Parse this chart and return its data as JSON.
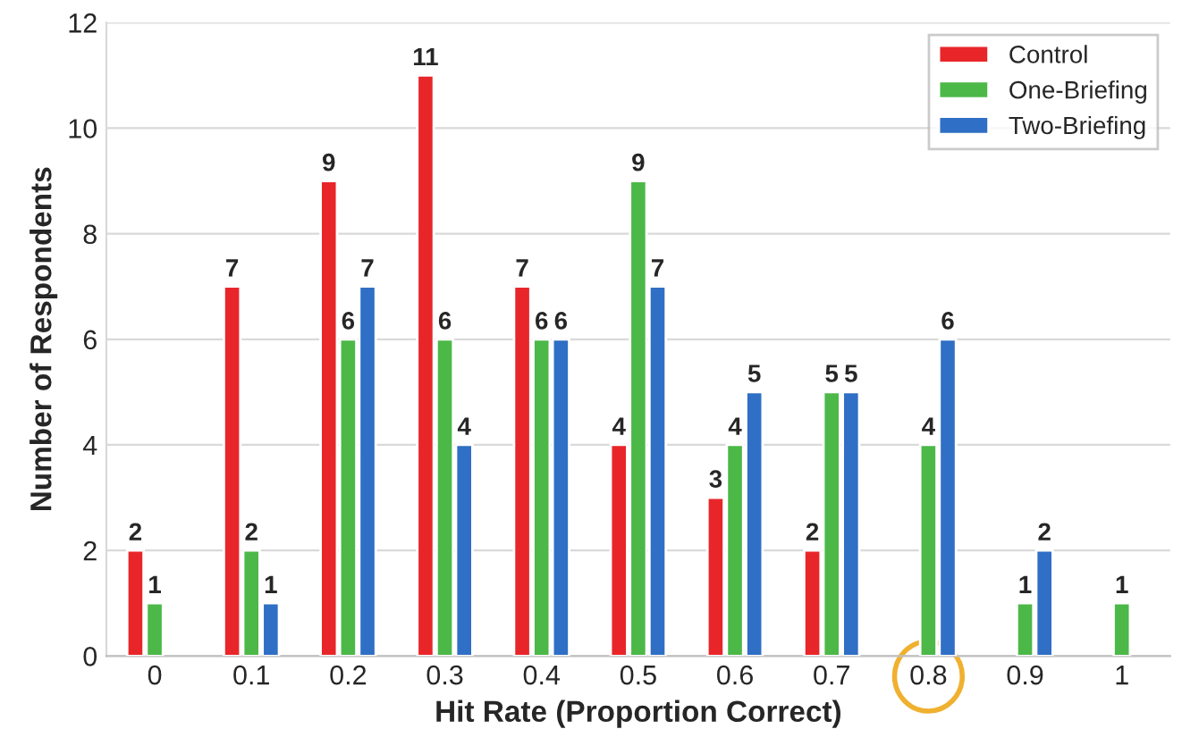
{
  "chart_data": {
    "type": "bar",
    "xlabel": "Hit Rate (Proportion Correct)",
    "ylabel": "Number of Respondents",
    "categories": [
      "0",
      "0.1",
      "0.2",
      "0.3",
      "0.4",
      "0.5",
      "0.6",
      "0.7",
      "0.8",
      "0.9",
      "1"
    ],
    "series": [
      {
        "name": "Control",
        "color": "#e8262a",
        "values": [
          2,
          7,
          9,
          11,
          7,
          4,
          3,
          2,
          null,
          null,
          null
        ]
      },
      {
        "name": "One-Briefing",
        "color": "#4cb848",
        "values": [
          1,
          2,
          6,
          6,
          6,
          9,
          4,
          5,
          4,
          1,
          1
        ]
      },
      {
        "name": "Two-Briefing",
        "color": "#2f6fc5",
        "values": [
          null,
          1,
          7,
          4,
          6,
          7,
          5,
          5,
          6,
          2,
          null
        ]
      }
    ],
    "ylim": [
      0,
      12
    ],
    "yticks": [
      0,
      2,
      4,
      6,
      8,
      10,
      12
    ],
    "grid": "y",
    "legend": "top right",
    "data_labels": true
  }
}
